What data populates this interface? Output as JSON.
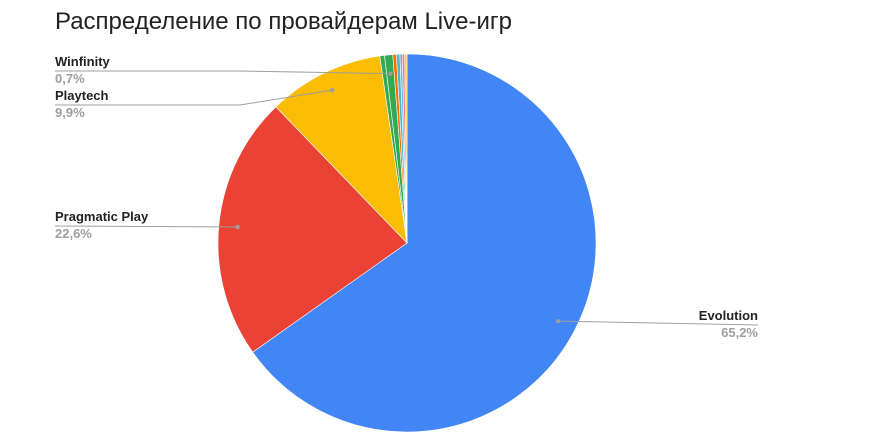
{
  "chart_data": {
    "type": "pie",
    "title": "Распределение по провайдерам Live-игр",
    "slices": [
      {
        "label": "Evolution",
        "value": 65.2,
        "display": "65,2%",
        "color": "#4285f4"
      },
      {
        "label": "Pragmatic Play",
        "value": 22.6,
        "display": "22,6%",
        "color": "#ea4335"
      },
      {
        "label": "Playtech",
        "value": 9.9,
        "display": "9,9%",
        "color": "#fbbc04"
      },
      {
        "label": "",
        "value": 0.4,
        "display": "",
        "color": "#34a853"
      },
      {
        "label": "Winfinity",
        "value": 0.7,
        "display": "0,7%",
        "color": "#34a853"
      },
      {
        "label": "",
        "value": 0.3,
        "display": "",
        "color": "#ff6d01"
      },
      {
        "label": "",
        "value": 0.3,
        "display": "",
        "color": "#46bdc6"
      },
      {
        "label": "",
        "value": 0.2,
        "display": "",
        "color": "#7baaf7"
      },
      {
        "label": "",
        "value": 0.2,
        "display": "",
        "color": "#f07b72"
      },
      {
        "label": "",
        "value": 0.2,
        "display": "",
        "color": "#fcd04f"
      }
    ],
    "legend": "none"
  }
}
